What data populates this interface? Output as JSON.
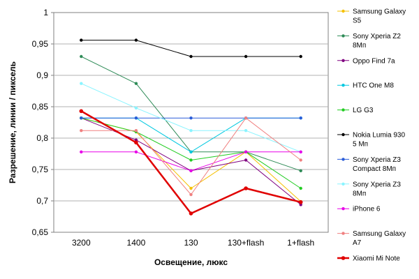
{
  "chart_data": {
    "type": "line",
    "title": "",
    "xlabel": "Освещение, люкс",
    "ylabel": "Разрешение, линии / пиксель",
    "categories": [
      "3200",
      "1400",
      "130",
      "130+flash",
      "1+flash"
    ],
    "ylim": [
      0.65,
      1.0
    ],
    "yticks": [
      "0,65",
      "0,7",
      "0,75",
      "0,8",
      "0,85",
      "0,9",
      "0,95",
      "1"
    ],
    "grid": "horizontal",
    "legend": "right",
    "series": [
      {
        "name": "Samsung Galaxy S5",
        "label_lines": [
          "Samsung Galaxy",
          "S5"
        ],
        "color": "#f5c000",
        "values": [
          0.832,
          0.81,
          0.72,
          0.778,
          0.699
        ]
      },
      {
        "name": "Sony Xperia Z2 8Мп",
        "label_lines": [
          "Sony Xperia Z2",
          "8Мп"
        ],
        "color": "#2e8b57",
        "values": [
          0.93,
          0.887,
          0.778,
          0.778,
          0.748
        ]
      },
      {
        "name": "Oppo Find 7a",
        "label_lines": [
          "Oppo Find 7a"
        ],
        "color": "#800080",
        "values": [
          0.832,
          0.797,
          0.748,
          0.765,
          0.694
        ]
      },
      {
        "name": "HTC One M8",
        "label_lines": [
          "HTC One M8"
        ],
        "color": "#00c8e0",
        "values": [
          0.832,
          0.832,
          0.778,
          0.832,
          0.832
        ]
      },
      {
        "name": "LG G3",
        "label_lines": [
          "LG G3"
        ],
        "color": "#22cc22",
        "values": [
          0.832,
          0.81,
          0.765,
          0.778,
          0.72
        ]
      },
      {
        "name": "Nokia Lumia 930 5 Мп",
        "label_lines": [
          "Nokia Lumia 930",
          "5 Мп"
        ],
        "color": "#000000",
        "values": [
          0.956,
          0.956,
          0.93,
          0.93,
          0.93
        ]
      },
      {
        "name": "Sony Xperia Z3 Compact 8Мп",
        "label_lines": [
          "Sony Xperia Z3",
          "Compact 8Мп"
        ],
        "color": "#2a5dd8",
        "values": [
          0.832,
          0.832,
          0.832,
          0.832,
          0.832
        ]
      },
      {
        "name": "Sony Xperia Z3 8Мп",
        "label_lines": [
          "Sony Xperia Z3",
          "8Мп"
        ],
        "color": "#8af4ff",
        "values": [
          0.887,
          0.848,
          0.812,
          0.812,
          0.778
        ]
      },
      {
        "name": "iPhone 6",
        "label_lines": [
          "iPhone 6"
        ],
        "color": "#e800e8",
        "values": [
          0.778,
          0.778,
          0.748,
          0.778,
          0.778
        ]
      },
      {
        "name": "Samsung Galaxy A7",
        "label_lines": [
          "Samsung Galaxy",
          "A7"
        ],
        "color": "#f08080",
        "values": [
          0.812,
          0.812,
          0.71,
          0.832,
          0.765
        ]
      },
      {
        "name": "Xiaomi Mi Note",
        "label_lines": [
          "Xiaomi Mi Note"
        ],
        "color": "#e00000",
        "bold": true,
        "values": [
          0.843,
          0.793,
          0.68,
          0.72,
          0.698
        ]
      }
    ]
  }
}
